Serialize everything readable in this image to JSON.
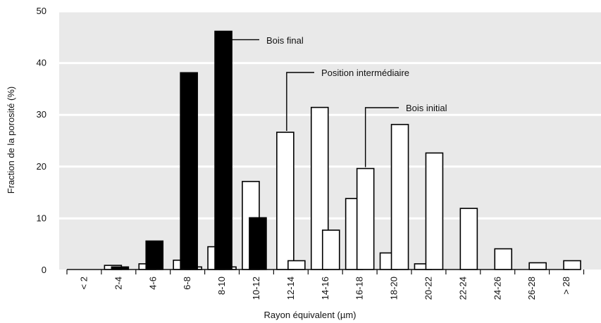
{
  "chart_data": {
    "type": "bar",
    "xlabel": "Rayon équivalent (µm)",
    "ylabel": "Fraction de la porosité (%)",
    "ylim": [
      0,
      50
    ],
    "yticks": [
      0,
      10,
      20,
      30,
      40,
      50
    ],
    "grid": true,
    "categories": [
      "< 2",
      "2-4",
      "4-6",
      "6-8",
      "8-10",
      "10-12",
      "12-14",
      "14-16",
      "16-18",
      "18-20",
      "20-22",
      "22-24",
      "24-26",
      "26-28",
      "> 28"
    ],
    "series": [
      {
        "name": "Bois final",
        "values": [
          0,
          0.5,
          5.5,
          38,
          46,
          10,
          0,
          0,
          0,
          0,
          0,
          0,
          0,
          0,
          0
        ]
      },
      {
        "name": "Position intermédiaire",
        "values": [
          0,
          0.8,
          1.1,
          1.8,
          4.4,
          17,
          26.5,
          31.3,
          13.7,
          3.2,
          1.1,
          0,
          0,
          0,
          0
        ]
      },
      {
        "name": "Bois initial",
        "values": [
          0,
          0,
          0,
          0.5,
          0.5,
          0,
          1.7,
          7.6,
          19.5,
          28,
          22.5,
          11.8,
          4,
          1.3,
          1.7
        ]
      }
    ],
    "colors": {
      "Bois final": "#000000",
      "Position intermédiaire": "#ffffff",
      "Bois initial": "#ffffff"
    },
    "annotations": [
      {
        "text": "Bois final",
        "series": "Bois final",
        "category": "8-10"
      },
      {
        "text": "Position intermédiaire",
        "series": "Position intermédiaire",
        "category": "12-14"
      },
      {
        "text": "Bois initial",
        "series": "Bois initial",
        "category": "16-18"
      }
    ]
  }
}
